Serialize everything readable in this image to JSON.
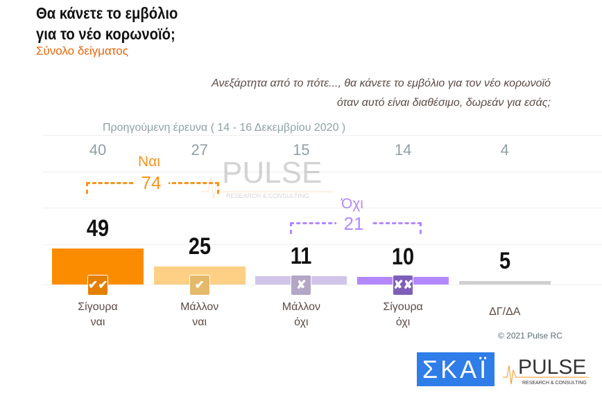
{
  "title_lines": [
    "Θα κάνετε το εμβόλιο",
    "για το νέο κορωνοϊό;"
  ],
  "subtitle": "Σύνολο δείγματος",
  "question_lines": [
    "Ανεξάρτητα από το πότε..., θα κάνετε το εμβόλιο για τον νέο κορωνοϊό",
    "όταν αυτό είναι διαθέσιμο, δωρεάν για εσάς;"
  ],
  "previous_label": "Προηγούμενη έρευνα  ( 14 - 16  Δεκεμβρίου  2020 )",
  "groups": {
    "yes": {
      "label": "Ναι",
      "total": "74",
      "color": "#f7941d"
    },
    "no": {
      "label": "Όχι",
      "total": "21",
      "color": "#b388ff"
    }
  },
  "chart_data": {
    "type": "bar",
    "categories": [
      "Σίγουρα ναι",
      "Μάλλον ναι",
      "Μάλλον όχι",
      "Σίγουρα όχι",
      "ΔΓ/ΔΑ"
    ],
    "category_lines": [
      [
        "Σίγουρα",
        "ναι"
      ],
      [
        "Μάλλον",
        "ναι"
      ],
      [
        "Μάλλον",
        "όχι"
      ],
      [
        "Σίγουρα",
        "όχι"
      ],
      [
        "ΔΓ/ΔΑ",
        ""
      ]
    ],
    "values": [
      49,
      25,
      11,
      10,
      5
    ],
    "previous_values": [
      40,
      27,
      15,
      14,
      4
    ],
    "colors": [
      "#fb8c00",
      "#fdd085",
      "#d1c4e9",
      "#b388ff",
      "#d0d0d0"
    ],
    "icons": [
      "double-check",
      "check",
      "cross",
      "double-cross",
      ""
    ],
    "icon_glyphs": [
      "✔✔",
      "✔",
      "✘",
      "✘✘",
      ""
    ],
    "icon_colors": [
      "#e47f00",
      "#e4b96a",
      "#b3a6c7",
      "#7e5fb8",
      ""
    ],
    "ylim": [
      0,
      100
    ]
  },
  "copyright": "© 2021 Pulse RC",
  "logos": {
    "skai": "ΣΚΑΪ",
    "pulse": "PULSE",
    "pulse_sub": "RESEARCH & CONSULTING"
  }
}
